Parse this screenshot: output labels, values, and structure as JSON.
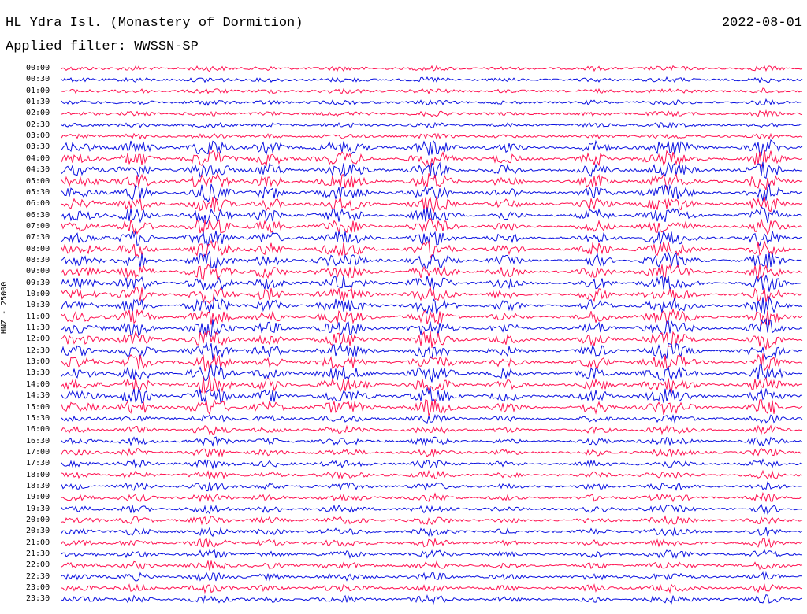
{
  "header": {
    "station": "HL Ydra Isl. (Monastery of Dormition)",
    "filter": "Applied filter: WWSSN-SP",
    "date": "2022-08-01"
  },
  "chart_data": {
    "type": "line",
    "channel_label": "HNZ - 25000",
    "row_labels": [
      "00:00",
      "00:30",
      "01:00",
      "01:30",
      "02:00",
      "02:30",
      "03:00",
      "03:30",
      "04:00",
      "04:30",
      "05:00",
      "05:30",
      "06:00",
      "06:30",
      "07:00",
      "07:30",
      "08:00",
      "08:30",
      "09:00",
      "09:30",
      "10:00",
      "10:30",
      "11:00",
      "11:30",
      "12:00",
      "12:30",
      "13:00",
      "13:30",
      "14:00",
      "14:30",
      "15:00",
      "15:30",
      "16:00",
      "16:30",
      "17:00",
      "17:30",
      "18:00",
      "18:30",
      "19:00",
      "19:30",
      "20:00",
      "20:30",
      "21:00",
      "21:30",
      "22:00",
      "22:30",
      "23:00",
      "23:30"
    ],
    "series_colors": [
      "#ff1050",
      "#0a10e0"
    ],
    "x_range_minutes": [
      0,
      30
    ],
    "note_color_order": "alternating rows"
  }
}
